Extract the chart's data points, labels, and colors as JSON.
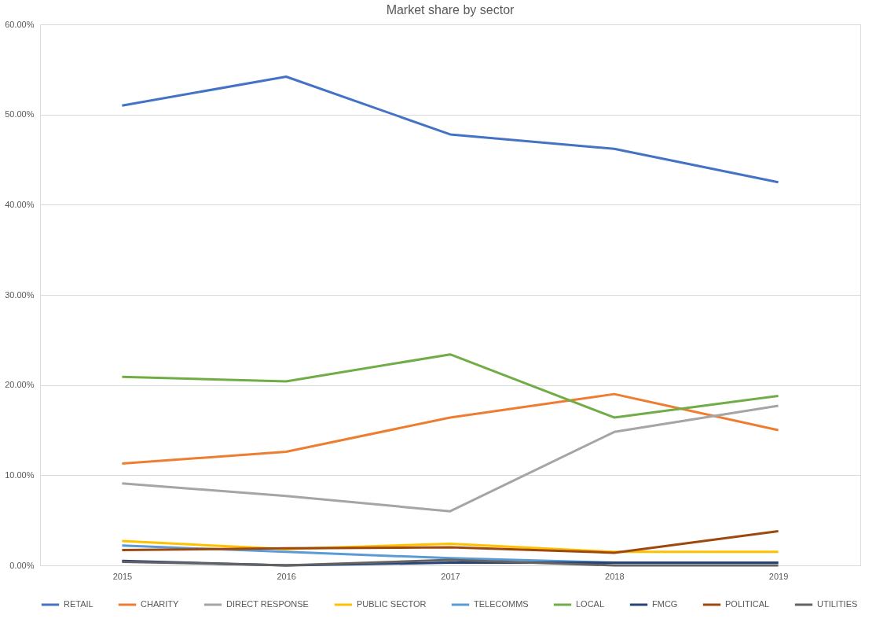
{
  "chart_data": {
    "type": "line",
    "title": "Market share by sector",
    "categories": [
      "2015",
      "2016",
      "2017",
      "2018",
      "2019"
    ],
    "series": [
      {
        "name": "RETAIL",
        "color": "#4472c4",
        "values": [
          51.0,
          54.2,
          47.8,
          46.2,
          42.5
        ]
      },
      {
        "name": "CHARITY",
        "color": "#ed7d31",
        "values": [
          11.3,
          12.6,
          16.4,
          19.0,
          15.0
        ]
      },
      {
        "name": "DIRECT RESPONSE",
        "color": "#a5a5a5",
        "values": [
          9.1,
          7.7,
          6.0,
          14.8,
          17.7
        ]
      },
      {
        "name": "PUBLIC SECTOR",
        "color": "#ffc000",
        "values": [
          2.7,
          1.8,
          2.4,
          1.5,
          1.5
        ]
      },
      {
        "name": "TELECOMMS",
        "color": "#5b9bd5",
        "values": [
          2.2,
          1.5,
          0.8,
          0.3,
          0.3
        ]
      },
      {
        "name": "LOCAL",
        "color": "#70ad47",
        "values": [
          20.9,
          20.4,
          23.4,
          16.4,
          18.8
        ]
      },
      {
        "name": "FMCG",
        "color": "#264478",
        "values": [
          0.5,
          0.0,
          0.3,
          0.3,
          0.3
        ]
      },
      {
        "name": "POLITICAL",
        "color": "#9e480e",
        "values": [
          1.7,
          1.9,
          2.0,
          1.4,
          3.8
        ]
      },
      {
        "name": "UTILITIES",
        "color": "#636363",
        "values": [
          0.4,
          0.0,
          0.6,
          0.0,
          0.0
        ]
      }
    ],
    "ylim": [
      0,
      60
    ],
    "yticks": [
      {
        "value": 0,
        "label": "0.00%"
      },
      {
        "value": 10,
        "label": "10.00%"
      },
      {
        "value": 20,
        "label": "20.00%"
      },
      {
        "value": 30,
        "label": "30.00%"
      },
      {
        "value": 40,
        "label": "40.00%"
      },
      {
        "value": 50,
        "label": "50.00%"
      },
      {
        "value": 60,
        "label": "60.00%"
      }
    ],
    "grid": "y",
    "legend": "bottom",
    "marker": "none",
    "line_style": "solid"
  }
}
